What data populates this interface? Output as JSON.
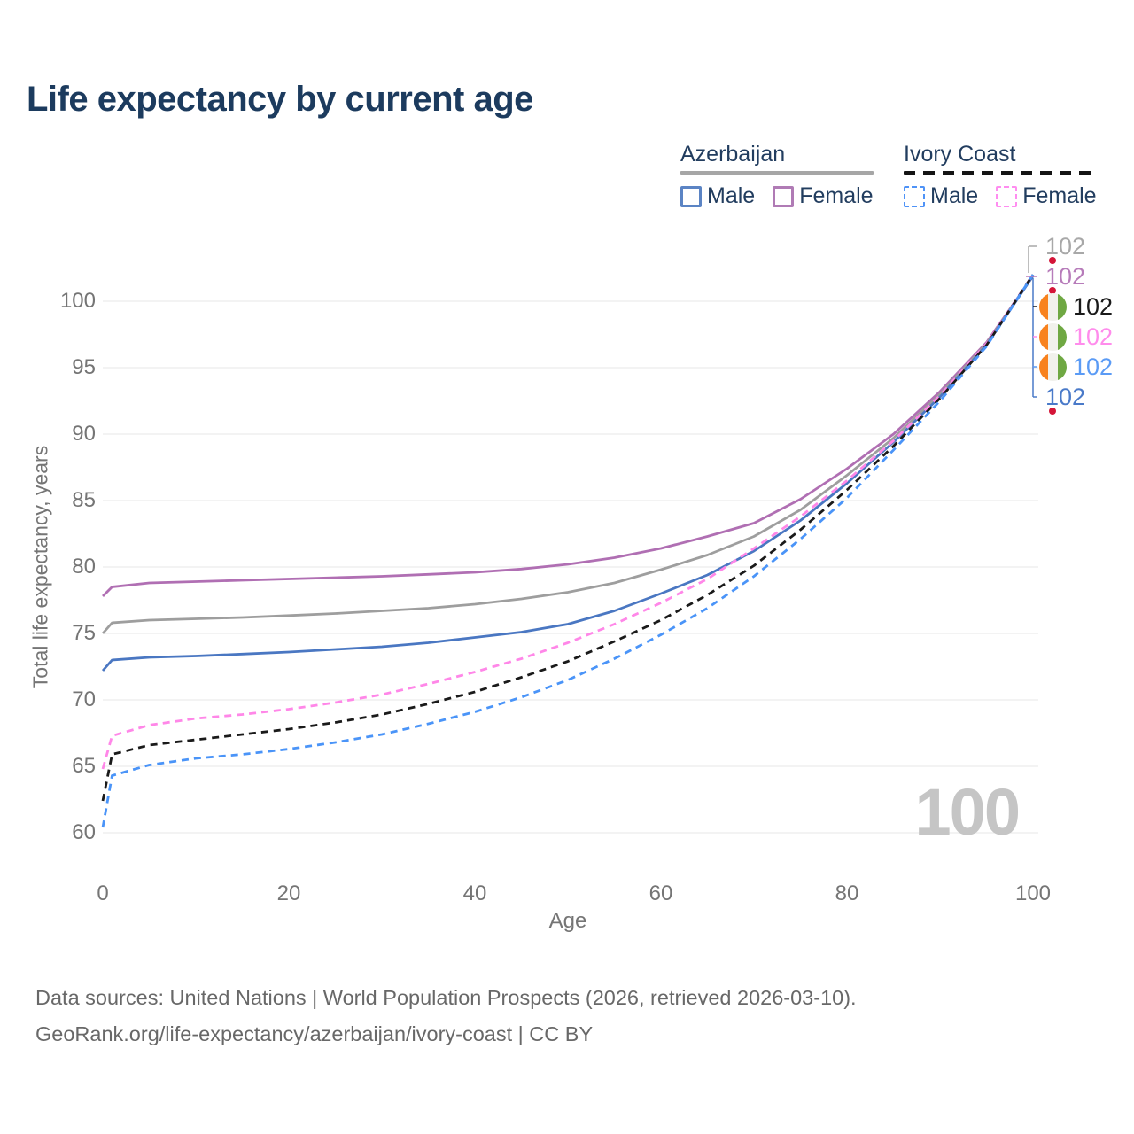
{
  "title": "Life expectancy by current age",
  "legend": {
    "groups": [
      {
        "label": "Azerbaijan",
        "line_style": "solid",
        "underline_color": "#a6a6a6",
        "items": [
          {
            "label": "Male",
            "color": "#4a77c2"
          },
          {
            "label": "Female",
            "color": "#b06fb3"
          }
        ]
      },
      {
        "label": "Ivory Coast",
        "line_style": "dashed",
        "underline_color": "#141414",
        "items": [
          {
            "label": "Male",
            "color": "#4a94f8"
          },
          {
            "label": "Female",
            "color": "#ff87e8"
          }
        ]
      }
    ]
  },
  "endpoint_labels": [
    {
      "flag": "azerbaijan",
      "value": "102",
      "color": "#a8a8a8",
      "series": "Azerbaijan total"
    },
    {
      "flag": "azerbaijan",
      "value": "102",
      "color": "#b77cba",
      "series": "Azerbaijan female"
    },
    {
      "flag": "ivory-coast",
      "value": "102",
      "color": "#1a1a1a",
      "series": "Ivory Coast total"
    },
    {
      "flag": "ivory-coast",
      "value": "102",
      "color": "#ff8cec",
      "series": "Ivory Coast female"
    },
    {
      "flag": "ivory-coast",
      "value": "102",
      "color": "#5b9bf5",
      "series": "Ivory Coast male"
    },
    {
      "flag": "azerbaijan",
      "value": "102",
      "color": "#4a7ac9",
      "series": "Azerbaijan male"
    }
  ],
  "watermark": "100",
  "footer": {
    "line1": "Data sources: United Nations | World Population Prospects (2026, retrieved 2026-03-10).",
    "line2": "GeoRank.org/life-expectancy/azerbaijan/ivory-coast | CC BY"
  },
  "flag_colors": {
    "azerbaijan": {
      "blue": "#36a1e0",
      "red": "#d41538",
      "green": "#58a32e"
    },
    "ivory_coast": {
      "orange": "#f8821e",
      "white": "#f1f1ec",
      "green": "#6fa843"
    }
  },
  "chart_data": {
    "type": "line",
    "title": "Life expectancy by current age",
    "xlabel": "Age",
    "ylabel": "Total life expectancy, years",
    "xlim": [
      0,
      100
    ],
    "ylim": [
      60,
      102
    ],
    "x_ticks": [
      0,
      20,
      40,
      60,
      80,
      100
    ],
    "y_ticks": [
      60,
      65,
      70,
      75,
      80,
      85,
      90,
      95,
      100
    ],
    "grid": "horizontal",
    "legend_position": "top-right",
    "x": [
      0,
      1,
      5,
      10,
      15,
      20,
      25,
      30,
      35,
      40,
      45,
      50,
      55,
      60,
      65,
      70,
      75,
      80,
      85,
      90,
      95,
      100
    ],
    "series": [
      {
        "name": "Azerbaijan — Female",
        "color": "#b06fb3",
        "dash": false,
        "values": [
          77.8,
          78.5,
          78.8,
          78.9,
          79.0,
          79.1,
          79.2,
          79.3,
          79.45,
          79.6,
          79.85,
          80.2,
          80.7,
          81.4,
          82.3,
          83.3,
          85.1,
          87.4,
          90.0,
          93.2,
          96.9,
          101.9
        ]
      },
      {
        "name": "Azerbaijan — Total",
        "color": "#9e9e9e",
        "dash": false,
        "values": [
          75.0,
          75.8,
          76.0,
          76.1,
          76.2,
          76.35,
          76.5,
          76.7,
          76.9,
          77.2,
          77.6,
          78.1,
          78.8,
          79.8,
          80.9,
          82.3,
          84.3,
          86.9,
          89.7,
          93.0,
          96.8,
          101.9
        ]
      },
      {
        "name": "Azerbaijan — Male",
        "color": "#4a77c2",
        "dash": false,
        "values": [
          72.2,
          73.0,
          73.2,
          73.3,
          73.45,
          73.6,
          73.8,
          74.0,
          74.3,
          74.7,
          75.1,
          75.7,
          76.7,
          78.0,
          79.4,
          81.2,
          83.5,
          86.3,
          89.4,
          92.8,
          96.7,
          101.9
        ]
      },
      {
        "name": "Ivory Coast — Female",
        "color": "#ff87e8",
        "dash": true,
        "values": [
          64.8,
          67.3,
          68.1,
          68.6,
          68.9,
          69.3,
          69.8,
          70.4,
          71.2,
          72.1,
          73.1,
          74.3,
          75.7,
          77.3,
          79.1,
          81.4,
          83.8,
          86.5,
          89.5,
          92.9,
          96.8,
          102.0
        ]
      },
      {
        "name": "Ivory Coast — Total",
        "color": "#1a1a1a",
        "dash": true,
        "values": [
          62.4,
          65.9,
          66.6,
          67.0,
          67.4,
          67.8,
          68.3,
          68.9,
          69.7,
          70.6,
          71.7,
          72.9,
          74.4,
          76.0,
          77.9,
          80.1,
          82.8,
          85.8,
          89.1,
          92.7,
          96.7,
          102.0
        ]
      },
      {
        "name": "Ivory Coast — Male",
        "color": "#4a94f8",
        "dash": true,
        "values": [
          60.4,
          64.3,
          65.1,
          65.6,
          65.9,
          66.3,
          66.8,
          67.4,
          68.2,
          69.1,
          70.2,
          71.5,
          73.1,
          74.9,
          76.9,
          79.3,
          82.1,
          85.2,
          88.8,
          92.5,
          96.6,
          102.0
        ]
      }
    ]
  }
}
